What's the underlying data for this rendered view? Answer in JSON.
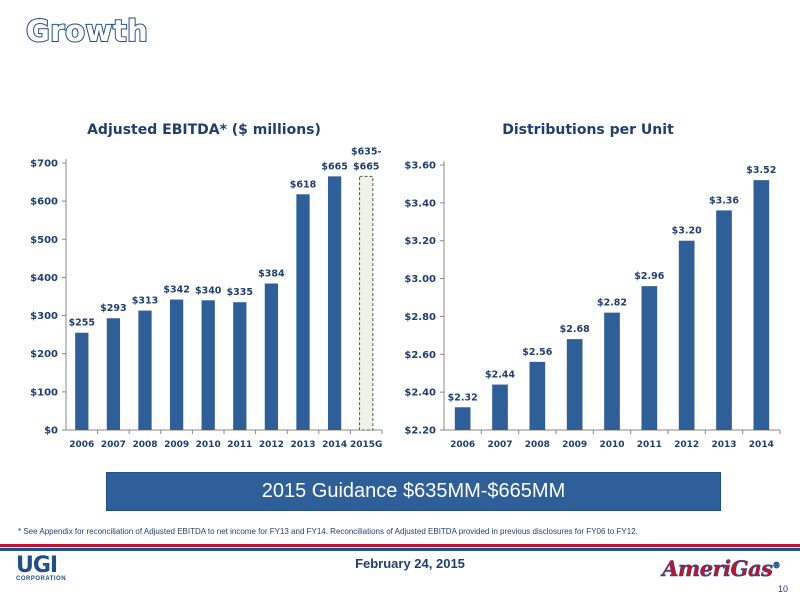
{
  "slide": {
    "title": "Growth",
    "banner": "2015 Guidance $635MM-$665MM",
    "footnote": "*  See Appendix for reconciliation of Adjusted EBITDA to net income for FY13 and FY14. Reconciliations of Adjusted EBITDA provided in previous disclosures for FY06 to FY12.",
    "date": "February 24, 2015",
    "page_number": "10",
    "logo_left": "UGI",
    "logo_left_sub": "CORPORATION",
    "logo_right": "AmeriGas",
    "logo_right_mark": "®"
  },
  "colors": {
    "bar": "#2f5f99",
    "title": "#1f3f73",
    "guidance_fill": "#eef3e6",
    "red": "#c8102e"
  },
  "chart_data": [
    {
      "type": "bar",
      "title": "Adjusted EBITDA* ($ millions)",
      "categories": [
        "2006",
        "2007",
        "2008",
        "2009",
        "2010",
        "2011",
        "2012",
        "2013",
        "2014",
        "2015G"
      ],
      "values": [
        255,
        293,
        313,
        342,
        340,
        335,
        384,
        618,
        665,
        665
      ],
      "data_labels": [
        "$255",
        "$293",
        "$313",
        "$342",
        "$340",
        "$335",
        "$384",
        "$618",
        "$665",
        "$635-\n$665"
      ],
      "guidance_range": [
        635,
        665
      ],
      "ylim": [
        0,
        700
      ],
      "yticks": [
        "$0",
        "$100",
        "$200",
        "$300",
        "$400",
        "$500",
        "$600",
        "$700"
      ],
      "ytick_values": [
        0,
        100,
        200,
        300,
        400,
        500,
        600,
        700
      ],
      "grid": false
    },
    {
      "type": "bar",
      "title": "Distributions per Unit",
      "categories": [
        "2006",
        "2007",
        "2008",
        "2009",
        "2010",
        "2011",
        "2012",
        "2013",
        "2014"
      ],
      "values": [
        2.32,
        2.44,
        2.56,
        2.68,
        2.82,
        2.96,
        3.2,
        3.36,
        3.52
      ],
      "data_labels": [
        "$2.32",
        "$2.44",
        "$2.56",
        "$2.68",
        "$2.82",
        "$2.96",
        "$3.20",
        "$3.36",
        "$3.52"
      ],
      "ylim": [
        2.2,
        3.6
      ],
      "yticks": [
        "$2.20",
        "$2.40",
        "$2.60",
        "$2.80",
        "$3.00",
        "$3.20",
        "$3.40",
        "$3.60"
      ],
      "ytick_values": [
        2.2,
        2.4,
        2.6,
        2.8,
        3.0,
        3.2,
        3.4,
        3.6
      ],
      "grid": false
    }
  ]
}
